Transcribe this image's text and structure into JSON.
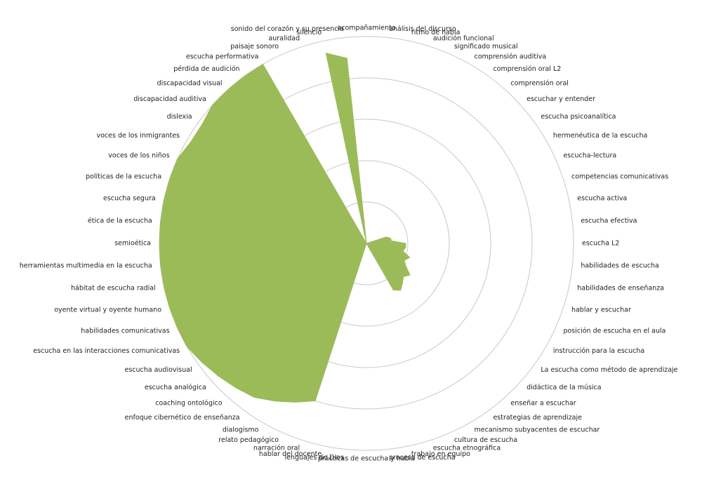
{
  "chart_data": {
    "type": "radar",
    "filled": true,
    "color": "#9bbb59",
    "categories": [
      "acompañamiento",
      "análisis del discurso",
      "ritmo de habla",
      "audición funcional",
      "significado musical",
      "comprensión auditiva",
      "comprensión oral L2",
      "comprensión oral",
      "escuchar y entender",
      "escucha psicoanalítica",
      "hermenéutica de la escucha",
      "escucha-lectura",
      "competencias comunicativas",
      "escucha activa",
      "escucha efectiva",
      "escucha L2",
      "habilidades de escucha",
      "habilidades de enseñanza",
      "hablar y escuchar",
      "posición de escucha en el aula",
      "instrucción para la escucha",
      "La escucha como método de aprendizaje",
      "didáctica de la música",
      "enseñar a escuchar",
      "estrategias de aprendizaje",
      "mecanismo subyacentes de escuchar",
      "cultura de escucha",
      "escucha etnográfica",
      "trabajo en equipo",
      "proceso de escucha",
      "prácticas de escucha y habla",
      "lenguajes de Dios",
      "hablar del docente",
      "narración oral",
      "relato pedagógico",
      "dialogismo",
      "enfoque cibernético de enseñanza",
      "coaching ontológico",
      "escucha analógica",
      "escucha audiovisual",
      "escucha en las interacciones comunicativas",
      "habilidades comunicativas",
      "oyente virtual y oyente humano",
      "hábitat de escucha radial",
      "herramientas multimedia en la escucha",
      "semioética",
      "ética de la escucha",
      "escucha segura",
      "políticas de la escucha",
      "voces de los niños",
      "voces de los inmigrantes",
      "dislexia",
      "discapacidad auditiva",
      "discapacidad visual",
      "pérdida de audición",
      "escucha performativa",
      "paisaje sonoro",
      "auralidad",
      "silencio",
      "sonido del corazón y su presencia"
    ],
    "values": [
      0,
      0,
      0,
      0,
      0,
      0,
      0,
      0,
      0,
      0,
      0,
      0,
      0.5,
      0.6,
      0.6,
      0.95,
      0.95,
      0.9,
      1.1,
      1.0,
      1.1,
      1.3,
      1.2,
      1.3,
      1.4,
      1.3,
      0,
      0,
      0,
      0,
      0,
      0,
      0,
      4,
      4.2,
      4.4,
      4.6,
      4.7,
      4.8,
      4.9,
      5,
      5,
      5,
      5,
      5,
      5,
      5,
      5,
      5,
      5,
      4.9,
      4.9,
      5,
      5,
      5,
      5,
      0,
      0,
      4.7,
      4.5
    ],
    "ylim": [
      0,
      5
    ],
    "yticks": [
      1,
      2,
      3,
      4,
      5
    ],
    "grid": true
  }
}
